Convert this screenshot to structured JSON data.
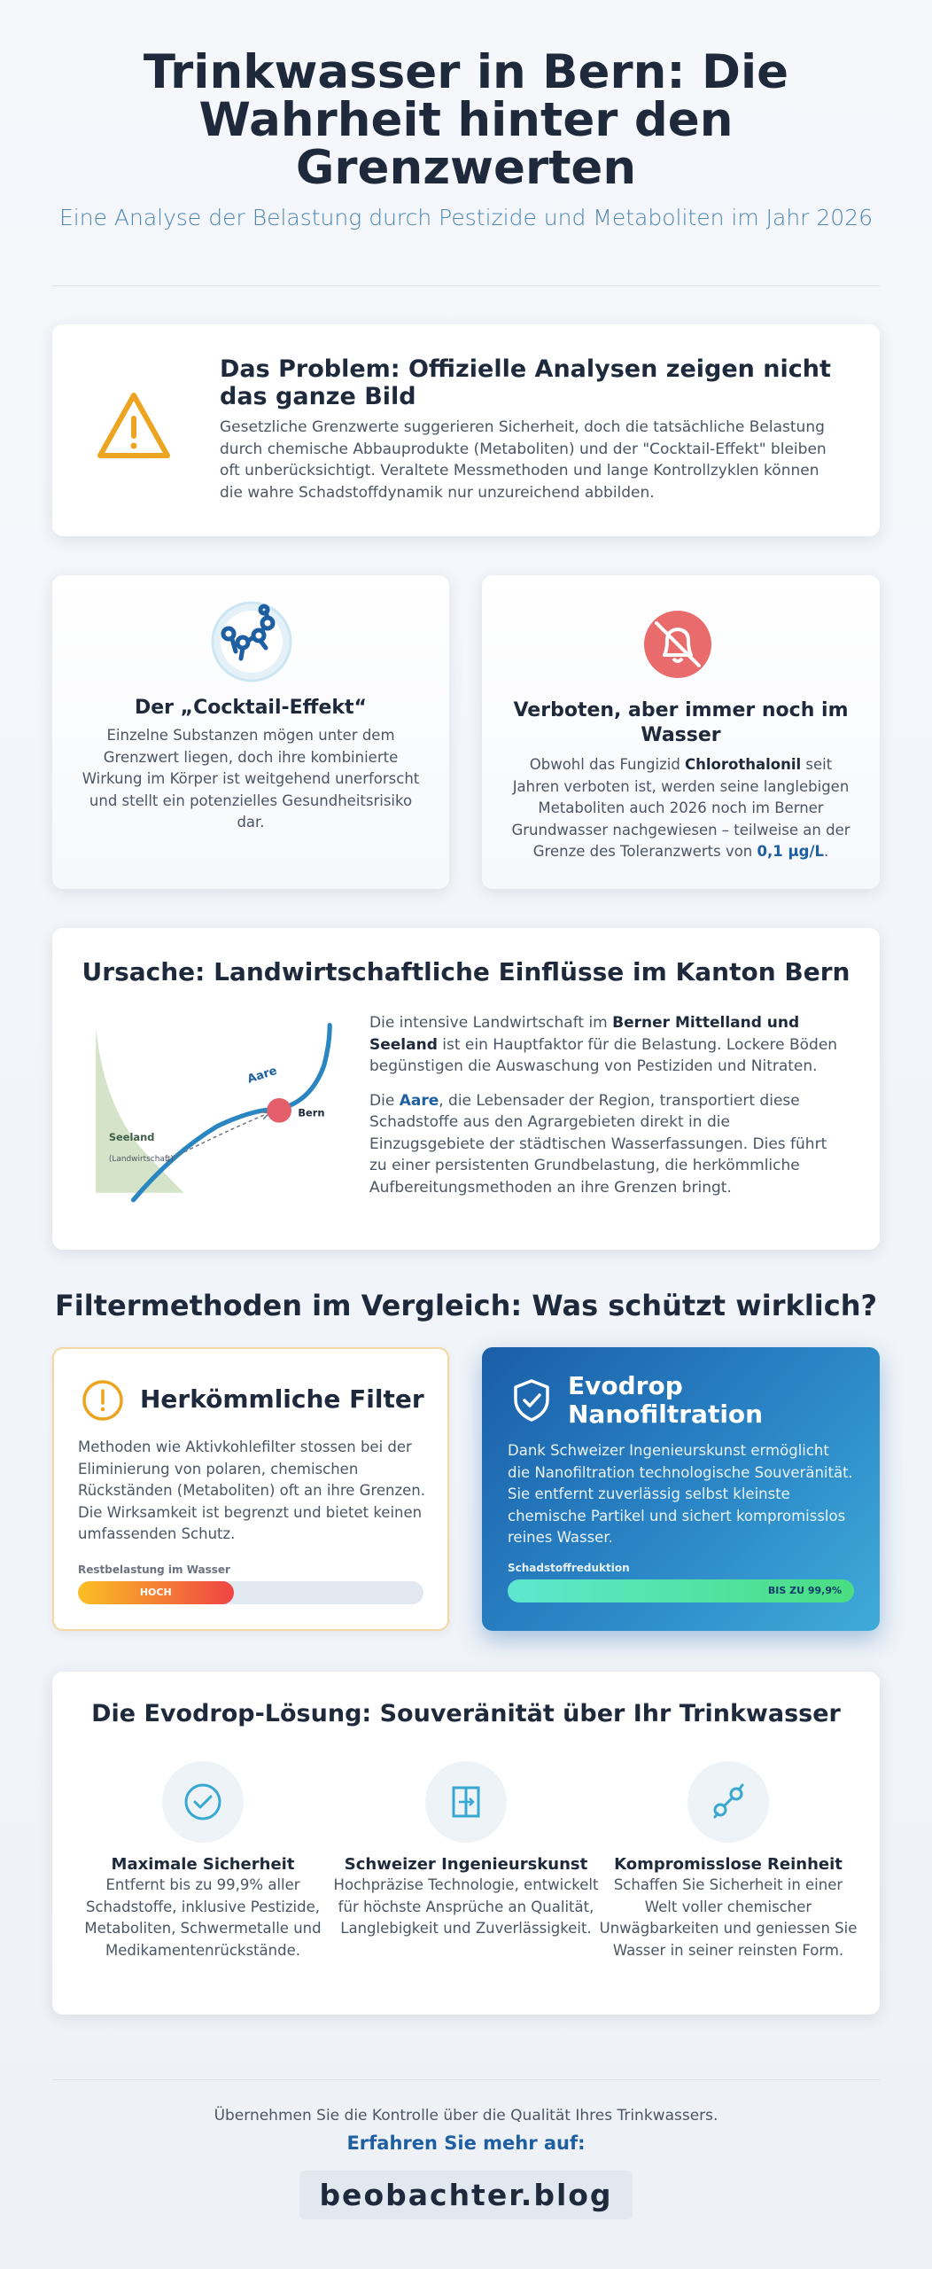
{
  "header": {
    "title": "Trinkwasser in Bern: Die Wahrheit hinter den Grenzwerten",
    "subtitle": "Eine Analyse der Belastung durch Pestizide und Metaboliten im Jahr 2026"
  },
  "problem": {
    "title": "Das Problem: Offizielle Analysen zeigen nicht das ganze Bild",
    "text": "Gesetzliche Grenzwerte suggerieren Sicherheit, doch die tatsächliche Belastung durch chemische Abbauprodukte (Metaboliten) und der \"Cocktail-Effekt\" bleiben oft unberücksichtigt. Veraltete Messmethoden und lange Kontrollzyklen können die wahre Schadstoffdynamik nur unzureichend abbilden."
  },
  "cards": [
    {
      "title": "Der „Cocktail-Effekt“",
      "text": "Einzelne Substanzen mögen unter dem Grenzwert liegen, doch ihre kombinierte Wirkung im Körper ist weitgehend unerforscht und stellt ein potenzielles Gesundheitsrisiko dar."
    },
    {
      "title": "Verboten, aber immer noch im Wasser",
      "text_parts": [
        "Obwohl das Fungizid ",
        "Chlorothalonil",
        " seit Jahren verboten ist, werden seine langlebigen Metaboliten auch 2026 noch im Berner Grundwasser nachgewiesen – teilweise an der Grenze des Toleranzwerts von ",
        "0,1 µg/L",
        "."
      ]
    }
  ],
  "cause": {
    "title": "Ursache: Landwirtschaftliche Einflüsse im Kanton Bern",
    "map_labels": {
      "river": "Aare",
      "city": "Bern",
      "region": "Seeland",
      "region_note": "(Landwirtschaft)"
    },
    "paragraphs": [
      [
        "Die intensive Landwirtschaft im ",
        "Berner Mittelland und Seeland",
        " ist ein Hauptfaktor für die Belastung. Lockere Böden begünstigen die Auswaschung von Pestiziden und Nitraten."
      ],
      [
        "Die ",
        "Aare",
        ", die Lebensader der Region, transportiert diese Schadstoffe aus den Agrargebieten direkt in die Einzugsgebiete der städtischen Wasserfassungen. Dies führt zu einer persistenten Grundbelastung, die herkömmliche Aufbereitungsmethoden an ihre Grenzen bringt."
      ]
    ]
  },
  "comparison": {
    "title": "Filtermethoden im Vergleich: Was schützt wirklich?",
    "conventional": {
      "title": "Herkömmliche Filter",
      "text": "Methoden wie Aktivkohlefilter stossen bei der Eliminierung von polaren, chemischen Rückständen (Metaboliten) oft an ihre Grenzen. Die Wirksamkeit ist begrenzt und bietet keinen umfassenden Schutz.",
      "bar_label": "Restbelastung im Wasser",
      "bar_text": "HOCH"
    },
    "evodrop": {
      "title": "Evodrop Nanofiltration",
      "text": "Dank Schweizer Ingenieurskunst ermöglicht die Nanofiltration technologische Souveränität. Sie entfernt zuverlässig selbst kleinste chemische Partikel und sichert kompromisslos reines Wasser.",
      "bar_label": "Schadstoffreduktion",
      "bar_text": "BIS ZU 99,9%"
    }
  },
  "solution": {
    "title": "Die Evodrop-Lösung: Souveränität über Ihr Trinkwasser",
    "features": [
      {
        "title": "Maximale Sicherheit",
        "text": "Entfernt bis zu 99,9% aller Schadstoffe, inklusive Pestizide, Metaboliten, Schwermetalle und Medikamentenrückstände."
      },
      {
        "title": "Schweizer Ingenieurskunst",
        "text": "Hochpräzise Technologie, entwickelt für höchste Ansprüche an Qualität, Langlebigkeit und Zuverlässigkeit."
      },
      {
        "title": "Kompromisslose Reinheit",
        "text": "Schaffen Sie Sicherheit in einer Welt voller chemischer Unwägbarkeiten und geniessen Sie Wasser in seiner reinsten Form."
      }
    ]
  },
  "footer": {
    "text": "Übernehmen Sie die Kontrolle über die Qualität Ihres Trinkwassers.",
    "cta": "Erfahren Sie mehr auf:",
    "link": "beobachter.blog"
  }
}
